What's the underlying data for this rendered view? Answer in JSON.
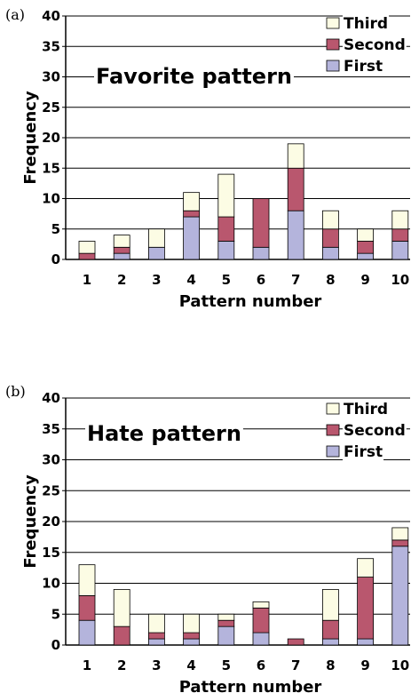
{
  "chart_data": [
    {
      "panel": "(a)",
      "type": "bar",
      "stacked": true,
      "title": "Favorite pattern",
      "xlabel": "Pattern number",
      "ylabel": "Frequency",
      "ylim": [
        0,
        40
      ],
      "yticks": [
        0,
        5,
        10,
        15,
        20,
        25,
        30,
        35,
        40
      ],
      "categories": [
        "1",
        "2",
        "3",
        "4",
        "5",
        "6",
        "7",
        "8",
        "9",
        "10"
      ],
      "grid": true,
      "legend_position": "top-right",
      "series": [
        {
          "name": "First",
          "color": "#b4b4dc",
          "values": [
            0,
            1,
            2,
            7,
            3,
            2,
            8,
            2,
            1,
            3
          ]
        },
        {
          "name": "Second",
          "color": "#b9576e",
          "values": [
            1,
            1,
            0,
            1,
            4,
            8,
            7,
            3,
            2,
            2
          ]
        },
        {
          "name": "Third",
          "color": "#fcfce4",
          "values": [
            2,
            2,
            3,
            3,
            7,
            0,
            4,
            3,
            2,
            3
          ]
        }
      ]
    },
    {
      "panel": "(b)",
      "type": "bar",
      "stacked": true,
      "title": "Hate pattern",
      "xlabel": "Pattern number",
      "ylabel": "Frequency",
      "ylim": [
        0,
        40
      ],
      "yticks": [
        0,
        5,
        10,
        15,
        20,
        25,
        30,
        35,
        40
      ],
      "categories": [
        "1",
        "2",
        "3",
        "4",
        "5",
        "6",
        "7",
        "8",
        "9",
        "10"
      ],
      "grid": true,
      "legend_position": "top-right",
      "series": [
        {
          "name": "First",
          "color": "#b4b4dc",
          "values": [
            4,
            0,
            1,
            1,
            3,
            2,
            0,
            1,
            1,
            16
          ]
        },
        {
          "name": "Second",
          "color": "#b9576e",
          "values": [
            4,
            3,
            1,
            1,
            1,
            4,
            1,
            3,
            10,
            1
          ]
        },
        {
          "name": "Third",
          "color": "#fcfce4",
          "values": [
            5,
            6,
            3,
            3,
            1,
            1,
            0,
            5,
            3,
            2
          ]
        }
      ]
    }
  ]
}
